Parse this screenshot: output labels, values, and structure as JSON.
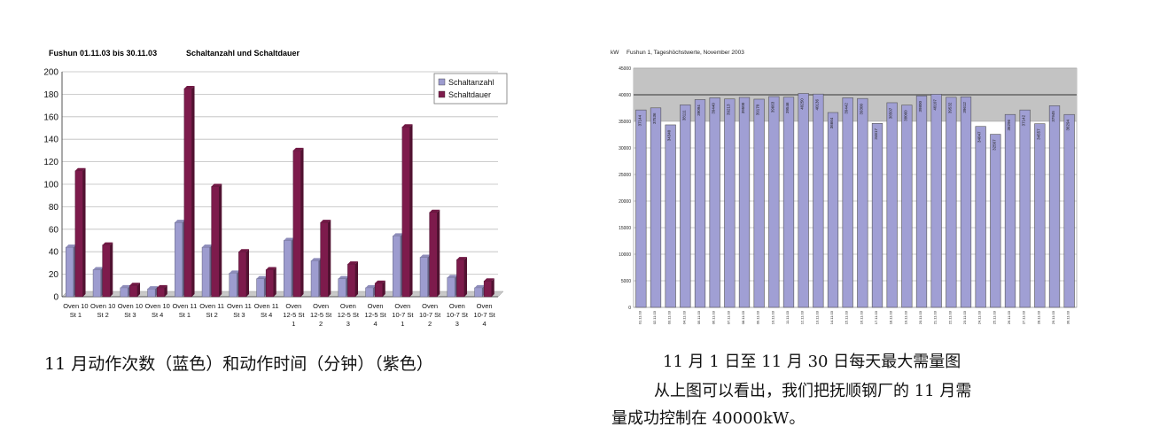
{
  "chart_data": [
    {
      "type": "bar",
      "title": "Fushun 01.11.03 bis 30.11.03",
      "subtitle": "Schaltanzahl und Schaltdauer",
      "xlabel": "",
      "ylabel": "",
      "ylim": [
        0,
        200
      ],
      "yticks": [
        0,
        20,
        40,
        60,
        80,
        100,
        120,
        140,
        160,
        180,
        200
      ],
      "grid": true,
      "legend_position": "top-right",
      "categories": [
        [
          "Oven 10",
          "St 1"
        ],
        [
          "Oven 10",
          "St 2"
        ],
        [
          "Oven 10",
          "St 3"
        ],
        [
          "Oven 10",
          "St 4"
        ],
        [
          "Oven 11",
          "St 1"
        ],
        [
          "Oven 11",
          "St 2"
        ],
        [
          "Oven 11",
          "St 3"
        ],
        [
          "Oven 11",
          "St 4"
        ],
        [
          "Oven",
          "12-5 St",
          "1"
        ],
        [
          "Oven",
          "12-5 St",
          "2"
        ],
        [
          "Oven",
          "12-5 St",
          "3"
        ],
        [
          "Oven",
          "12-5 St",
          "4"
        ],
        [
          "Oven",
          "10-7 St",
          "1"
        ],
        [
          "Oven",
          "10-7 St",
          "2"
        ],
        [
          "Oven",
          "10-7 St",
          "3"
        ],
        [
          "Oven",
          "10-7 St",
          "4"
        ]
      ],
      "series": [
        {
          "name": "Schaltanzahl",
          "color": "#9d9ccf",
          "values": [
            44,
            24,
            8,
            7,
            66,
            44,
            21,
            16,
            50,
            32,
            16,
            8,
            54,
            35,
            17,
            8
          ]
        },
        {
          "name": "Schaltdauer",
          "color": "#7d1b4c",
          "values": [
            112,
            46,
            10,
            8,
            185,
            98,
            40,
            24,
            130,
            66,
            29,
            12,
            151,
            75,
            33,
            14
          ]
        }
      ]
    },
    {
      "type": "bar",
      "title": "Fushun 1, Tageshöchstwerte, November 2003",
      "ylabel": "kW",
      "xlabel": "",
      "ylim": [
        0,
        45000
      ],
      "yticks": [
        0,
        5000,
        10000,
        15000,
        20000,
        25000,
        30000,
        35000,
        40000,
        45000
      ],
      "band": [
        35000,
        45000
      ],
      "grid": true,
      "categories": [
        "01.11.03",
        "02.11.03",
        "03.11.03",
        "04.11.03",
        "05.11.03",
        "06.11.03",
        "07.11.03",
        "08.11.03",
        "09.11.03",
        "10.11.03",
        "11.11.03",
        "12.11.03",
        "13.11.03",
        "14.11.03",
        "15.11.03",
        "16.11.03",
        "17.11.03",
        "18.11.03",
        "19.11.03",
        "20.11.03",
        "21.11.03",
        "22.11.03",
        "23.11.03",
        "24.11.03",
        "25.11.03",
        "26.11.03",
        "27.11.03",
        "28.11.03",
        "29.11.03",
        "30.11.03"
      ],
      "series": [
        {
          "name": "",
          "color": "#a09fd4",
          "values": [
            37144,
            37536,
            34340,
            38111,
            39094,
            39440,
            39213,
            39500,
            39170,
            39663,
            39546,
            40250,
            40136,
            36664,
            39442,
            39300,
            34617,
            38507,
            38060,
            39800,
            40107,
            39532,
            39612,
            34047,
            32567,
            36296,
            37142,
            34557,
            37945,
            36294
          ]
        }
      ]
    }
  ],
  "captions": {
    "chart1": "11 月动作次数（蓝色）和动作时间（分钟）（紫色）",
    "chart2": "11 月 1 日至 11 月 30 日每天最大需量图",
    "para_line1": "从上图可以看出，我们把抚顺钢厂的 11 月需",
    "para_line2": "量成功控制在 40000kW。"
  }
}
